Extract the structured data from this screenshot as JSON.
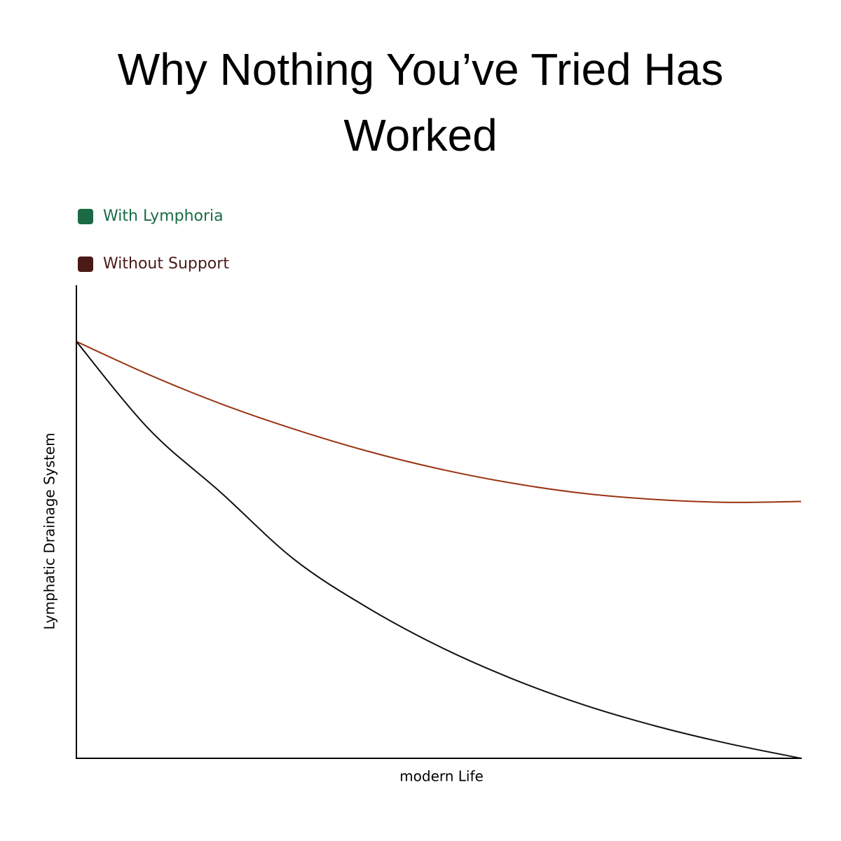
{
  "chart_data": {
    "type": "line",
    "title": "Why Nothing You’ve Tried Has Worked",
    "x_label": "modern Life",
    "y_label": "Lymphatic Drainage System",
    "x": [
      0,
      10,
      20,
      30,
      40,
      50,
      60,
      70,
      80,
      90,
      100
    ],
    "series": [
      {
        "name": "With Lymphoria",
        "color": "#9a3412",
        "marker_color": "#1a6b45",
        "values": [
          88.1,
          81.1,
          74.9,
          69.6,
          65.0,
          61.2,
          58.2,
          56.0,
          54.7,
          54.1,
          54.3
        ]
      },
      {
        "name": "Without Support",
        "color": "#111111",
        "marker_color": "#4a1a16",
        "values": [
          88.1,
          69.6,
          56.1,
          42.1,
          32.0,
          23.7,
          16.9,
          11.3,
          6.8,
          3.1,
          0
        ]
      }
    ],
    "xlim": [
      0,
      100
    ],
    "ylim": [
      0,
      100
    ],
    "grid": false,
    "legend": "top-left"
  }
}
